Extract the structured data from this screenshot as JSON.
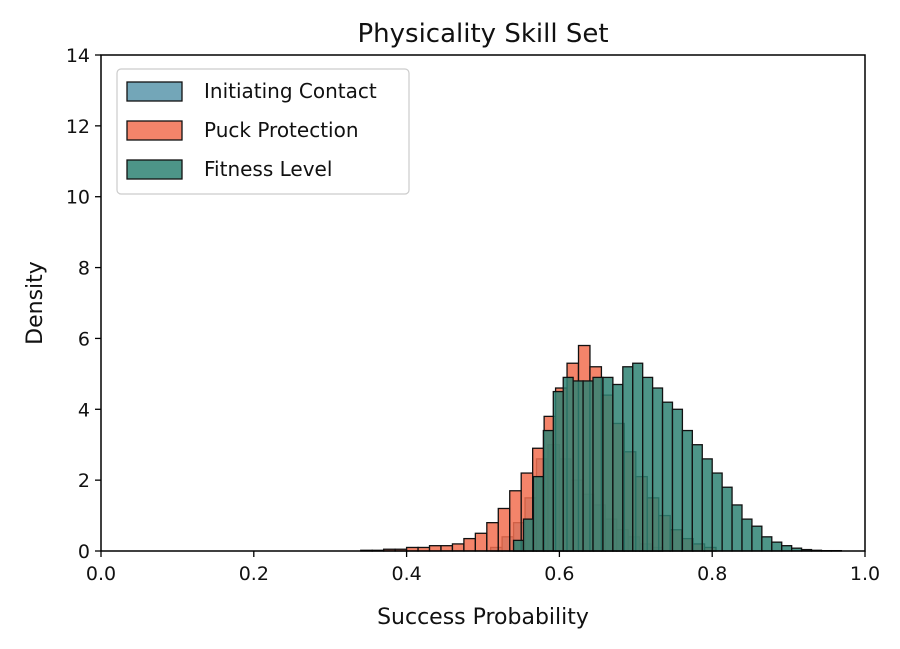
{
  "chart_data": {
    "type": "histogram",
    "title": "Physicality Skill Set",
    "xlabel": "Success Probability",
    "ylabel": "Density",
    "xlim": [
      0.0,
      1.0
    ],
    "ylim": [
      0,
      14
    ],
    "xticks": [
      "0.0",
      "0.2",
      "0.4",
      "0.6",
      "0.8",
      "1.0"
    ],
    "yticks": [
      "0",
      "2",
      "4",
      "6",
      "8",
      "10",
      "12",
      "14"
    ],
    "grid": false,
    "legend_position": "top-left",
    "series": [
      {
        "name": "Initiating Contact",
        "color": "#5b97ab",
        "bins": [
          [
            0.51,
            0.525,
            0.1
          ],
          [
            0.525,
            0.54,
            0.4
          ],
          [
            0.54,
            0.555,
            0.8
          ],
          [
            0.555,
            0.57,
            1.5
          ],
          [
            0.57,
            0.585,
            2.6
          ],
          [
            0.585,
            0.6,
            3.0
          ],
          [
            0.6,
            0.615,
            2.6
          ],
          [
            0.615,
            0.63,
            2.0
          ],
          [
            0.63,
            0.645,
            1.6
          ],
          [
            0.645,
            0.66,
            1.3
          ],
          [
            0.66,
            0.675,
            0.9
          ],
          [
            0.675,
            0.69,
            0.6
          ],
          [
            0.69,
            0.705,
            0.4
          ],
          [
            0.705,
            0.72,
            0.2
          ],
          [
            0.72,
            0.735,
            0.1
          ]
        ]
      },
      {
        "name": "Puck Protection",
        "color": "#f26e50",
        "bins": [
          [
            0.34,
            0.355,
            0.02
          ],
          [
            0.355,
            0.37,
            0.02
          ],
          [
            0.37,
            0.385,
            0.05
          ],
          [
            0.385,
            0.4,
            0.05
          ],
          [
            0.4,
            0.415,
            0.1
          ],
          [
            0.415,
            0.43,
            0.1
          ],
          [
            0.43,
            0.445,
            0.15
          ],
          [
            0.445,
            0.46,
            0.15
          ],
          [
            0.46,
            0.475,
            0.2
          ],
          [
            0.475,
            0.49,
            0.35
          ],
          [
            0.49,
            0.505,
            0.5
          ],
          [
            0.505,
            0.52,
            0.8
          ],
          [
            0.52,
            0.535,
            1.2
          ],
          [
            0.535,
            0.55,
            1.7
          ],
          [
            0.55,
            0.565,
            2.2
          ],
          [
            0.565,
            0.58,
            2.9
          ],
          [
            0.58,
            0.595,
            3.8
          ],
          [
            0.595,
            0.61,
            4.6
          ],
          [
            0.61,
            0.625,
            5.3
          ],
          [
            0.625,
            0.64,
            5.8
          ],
          [
            0.64,
            0.655,
            5.2
          ],
          [
            0.655,
            0.67,
            4.4
          ],
          [
            0.67,
            0.685,
            3.6
          ],
          [
            0.685,
            0.7,
            2.8
          ],
          [
            0.7,
            0.715,
            2.1
          ],
          [
            0.715,
            0.73,
            1.5
          ],
          [
            0.73,
            0.745,
            1.0
          ],
          [
            0.745,
            0.76,
            0.6
          ],
          [
            0.76,
            0.775,
            0.35
          ],
          [
            0.775,
            0.79,
            0.2
          ],
          [
            0.79,
            0.805,
            0.1
          ]
        ]
      },
      {
        "name": "Fitness Level",
        "color": "#2e8273",
        "bins": [
          [
            0.54,
            0.553,
            0.3
          ],
          [
            0.553,
            0.566,
            0.9
          ],
          [
            0.566,
            0.579,
            2.1
          ],
          [
            0.579,
            0.592,
            3.4
          ],
          [
            0.592,
            0.605,
            4.5
          ],
          [
            0.605,
            0.618,
            4.9
          ],
          [
            0.618,
            0.631,
            4.8
          ],
          [
            0.631,
            0.644,
            4.8
          ],
          [
            0.644,
            0.657,
            4.9
          ],
          [
            0.657,
            0.67,
            4.9
          ],
          [
            0.67,
            0.683,
            4.7
          ],
          [
            0.683,
            0.696,
            5.2
          ],
          [
            0.696,
            0.709,
            5.3
          ],
          [
            0.709,
            0.722,
            4.9
          ],
          [
            0.722,
            0.735,
            4.6
          ],
          [
            0.735,
            0.748,
            4.2
          ],
          [
            0.748,
            0.761,
            4.0
          ],
          [
            0.761,
            0.774,
            3.4
          ],
          [
            0.774,
            0.787,
            3.0
          ],
          [
            0.787,
            0.8,
            2.6
          ],
          [
            0.8,
            0.813,
            2.2
          ],
          [
            0.813,
            0.826,
            1.8
          ],
          [
            0.826,
            0.839,
            1.3
          ],
          [
            0.839,
            0.852,
            0.9
          ],
          [
            0.852,
            0.865,
            0.7
          ],
          [
            0.865,
            0.878,
            0.4
          ],
          [
            0.878,
            0.891,
            0.25
          ],
          [
            0.891,
            0.904,
            0.15
          ],
          [
            0.904,
            0.917,
            0.08
          ],
          [
            0.917,
            0.93,
            0.04
          ],
          [
            0.93,
            0.943,
            0.02
          ],
          [
            0.943,
            0.956,
            0.01
          ],
          [
            0.956,
            0.969,
            0.01
          ]
        ]
      }
    ]
  }
}
